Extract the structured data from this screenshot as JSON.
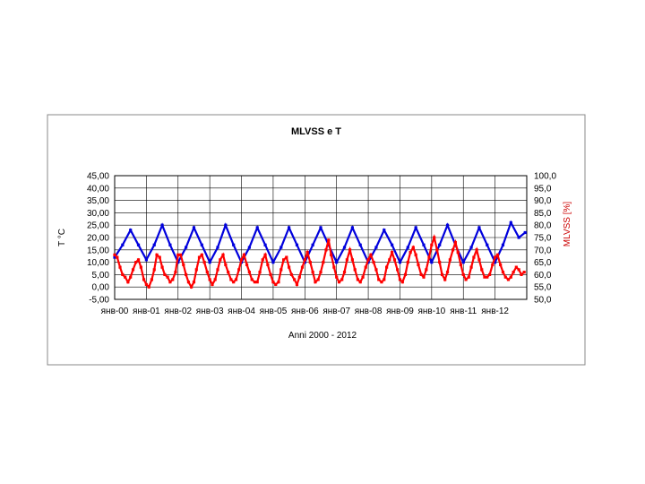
{
  "chart_data": {
    "type": "line",
    "title": "MLVSS e T",
    "xlabel": "Anni 2000 - 2012",
    "ylabel": "T °C",
    "y2label": "MLVSS [%]",
    "ylim": [
      -5,
      45
    ],
    "y2lim": [
      50,
      100
    ],
    "y_ticks": [
      "45,00",
      "40,00",
      "35,00",
      "30,00",
      "25,00",
      "20,00",
      "15,00",
      "10,00",
      "5,00",
      "0,00",
      "-5,00"
    ],
    "y2_ticks": [
      "100,0",
      "95,0",
      "90,0",
      "85,0",
      "80,0",
      "75,0",
      "70,0",
      "65,0",
      "60,0",
      "55,0",
      "50,0"
    ],
    "x_ticks": [
      "янв-00",
      "янв-01",
      "янв-02",
      "янв-03",
      "янв-04",
      "янв-05",
      "янв-06",
      "янв-07",
      "янв-08",
      "янв-09",
      "янв-10",
      "янв-11",
      "янв-12"
    ],
    "xlim": [
      2000.0,
      2013.0
    ],
    "grid": true,
    "legend": "none",
    "colors": {
      "T": "#0000dd",
      "MLVSS": "#ff0000"
    },
    "series": [
      {
        "axis": "left",
        "x": [
          2000.0,
          2000.25,
          2000.5,
          2000.75,
          2001.0,
          2001.25,
          2001.5,
          2001.75,
          2002.0,
          2002.25,
          2002.5,
          2002.75,
          2003.0,
          2003.25,
          2003.5,
          2003.75,
          2004.0,
          2004.25,
          2004.5,
          2004.75,
          2005.0,
          2005.25,
          2005.5,
          2005.75,
          2006.0,
          2006.25,
          2006.5,
          2006.75,
          2007.0,
          2007.25,
          2007.5,
          2007.75,
          2008.0,
          2008.25,
          2008.5,
          2008.75,
          2009.0,
          2009.25,
          2009.5,
          2009.75,
          2010.0,
          2010.25,
          2010.5,
          2010.75,
          2011.0,
          2011.25,
          2011.5,
          2011.75,
          2012.0,
          2012.25,
          2012.5,
          2012.75,
          2012.95
        ],
        "y": [
          12,
          17,
          23,
          17,
          11,
          17,
          25,
          17,
          10,
          16,
          24,
          17,
          10,
          16,
          25,
          17,
          10,
          16,
          24,
          17,
          10,
          16,
          24,
          17,
          10,
          17,
          24,
          17,
          10,
          16,
          24,
          17,
          10,
          16,
          23,
          17,
          10,
          16,
          24,
          17,
          10,
          17,
          25,
          17,
          10,
          16,
          24,
          17,
          10,
          17,
          26,
          20,
          22
        ]
      },
      {
        "axis": "right",
        "x": [
          2000.0,
          2000.08,
          2000.17,
          2000.25,
          2000.33,
          2000.42,
          2000.5,
          2000.58,
          2000.67,
          2000.75,
          2000.83,
          2000.92,
          2001.0,
          2001.08,
          2001.17,
          2001.25,
          2001.33,
          2001.42,
          2001.5,
          2001.58,
          2001.67,
          2001.75,
          2001.83,
          2001.92,
          2002.0,
          2002.08,
          2002.17,
          2002.25,
          2002.33,
          2002.42,
          2002.5,
          2002.58,
          2002.67,
          2002.75,
          2002.83,
          2002.92,
          2003.0,
          2003.08,
          2003.17,
          2003.25,
          2003.33,
          2003.42,
          2003.5,
          2003.58,
          2003.67,
          2003.75,
          2003.83,
          2003.92,
          2004.0,
          2004.08,
          2004.17,
          2004.25,
          2004.33,
          2004.42,
          2004.5,
          2004.58,
          2004.67,
          2004.75,
          2004.83,
          2004.92,
          2005.0,
          2005.08,
          2005.17,
          2005.25,
          2005.33,
          2005.42,
          2005.5,
          2005.58,
          2005.67,
          2005.75,
          2005.83,
          2005.92,
          2006.0,
          2006.08,
          2006.17,
          2006.25,
          2006.33,
          2006.42,
          2006.5,
          2006.58,
          2006.67,
          2006.75,
          2006.83,
          2006.92,
          2007.0,
          2007.08,
          2007.17,
          2007.25,
          2007.33,
          2007.42,
          2007.5,
          2007.58,
          2007.67,
          2007.75,
          2007.83,
          2007.92,
          2008.0,
          2008.08,
          2008.17,
          2008.25,
          2008.33,
          2008.42,
          2008.5,
          2008.58,
          2008.67,
          2008.75,
          2008.83,
          2008.92,
          2009.0,
          2009.08,
          2009.17,
          2009.25,
          2009.33,
          2009.42,
          2009.5,
          2009.58,
          2009.67,
          2009.75,
          2009.83,
          2009.92,
          2010.0,
          2010.08,
          2010.17,
          2010.25,
          2010.33,
          2010.42,
          2010.5,
          2010.58,
          2010.67,
          2010.75,
          2010.83,
          2010.92,
          2011.0,
          2011.08,
          2011.17,
          2011.25,
          2011.33,
          2011.42,
          2011.5,
          2011.58,
          2011.67,
          2011.75,
          2011.83,
          2011.92,
          2012.0,
          2012.08,
          2012.17,
          2012.25,
          2012.33,
          2012.42,
          2012.5,
          2012.58,
          2012.67,
          2012.75,
          2012.83,
          2012.92
        ],
        "y": [
          68,
          67,
          63,
          60,
          59,
          57,
          59,
          62,
          65,
          66,
          63,
          58,
          56,
          55,
          58,
          62,
          68,
          67,
          63,
          60,
          59,
          57,
          58,
          61,
          68,
          68,
          64,
          60,
          57,
          55,
          57,
          62,
          67,
          68,
          65,
          61,
          58,
          56,
          58,
          62,
          66,
          68,
          64,
          61,
          58,
          57,
          58,
          62,
          66,
          68,
          64,
          61,
          58,
          57,
          57,
          61,
          66,
          68,
          64,
          60,
          57,
          56,
          57,
          62,
          66,
          67,
          63,
          60,
          58,
          56,
          59,
          63,
          66,
          69,
          65,
          61,
          57,
          58,
          61,
          65,
          70,
          74,
          68,
          63,
          59,
          57,
          58,
          61,
          66,
          70,
          66,
          62,
          58,
          57,
          59,
          63,
          66,
          68,
          65,
          62,
          58,
          57,
          58,
          63,
          66,
          69,
          66,
          62,
          58,
          57,
          60,
          65,
          69,
          71,
          68,
          64,
          60,
          59,
          62,
          67,
          72,
          75,
          70,
          65,
          60,
          58,
          61,
          66,
          70,
          73,
          69,
          64,
          60,
          58,
          59,
          63,
          67,
          70,
          66,
          62,
          59,
          59,
          60,
          64,
          67,
          68,
          64,
          61,
          59,
          58,
          59,
          61,
          63,
          62,
          60,
          61
        ]
      }
    ]
  }
}
